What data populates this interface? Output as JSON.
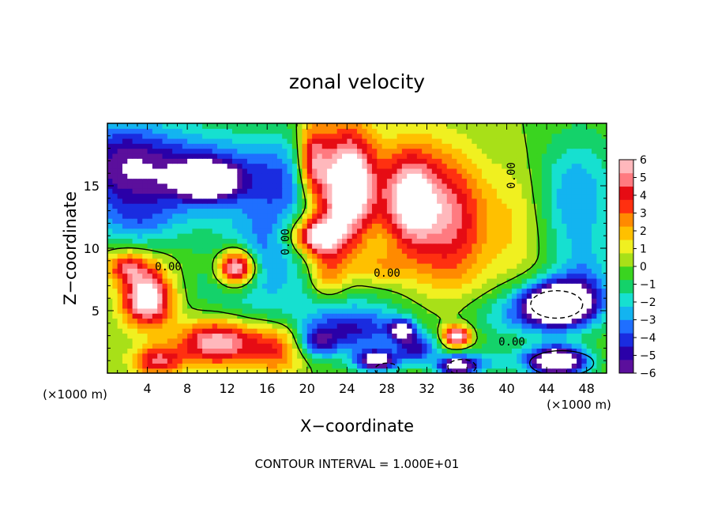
{
  "chart_data": {
    "type": "heatmap",
    "title": "zonal velocity",
    "xlabel": "X−coordinate",
    "ylabel": "Z−coordinate",
    "x_units_left": "(×1000 m)",
    "x_units_right": "(×1000 m)",
    "footer": "CONTOUR INTERVAL = 1.000E+01",
    "xlim": [
      0,
      50
    ],
    "ylim": [
      0,
      20
    ],
    "x_ticks": [
      "4",
      "8",
      "12",
      "16",
      "20",
      "24",
      "28",
      "32",
      "36",
      "40",
      "44",
      "48"
    ],
    "y_ticks": [
      "5",
      "10",
      "15"
    ],
    "colorbar": {
      "min": -6,
      "max": 6,
      "labels": [
        "6",
        "5",
        "4",
        "3",
        "2",
        "1",
        "0",
        "−1",
        "−2",
        "−3",
        "−4",
        "−5",
        "−6"
      ],
      "colors": [
        "#5b0f9c",
        "#2a00a8",
        "#1a2ce0",
        "#1f6fff",
        "#13b4f0",
        "#16e0d0",
        "#14d26a",
        "#3ad420",
        "#a8e018",
        "#f0f020",
        "#ffc000",
        "#ff8a00",
        "#ff3010",
        "#e60c14",
        "#ff7a80",
        "#ffb8bc"
      ]
    },
    "contour_labels": [
      "0.00",
      "0.00",
      "0.00",
      "0.00",
      "0.00"
    ],
    "blobs": [
      {
        "x": 17,
        "y": 7,
        "u": -2.0,
        "sx": 9,
        "sy": 5
      },
      {
        "x": 8,
        "y": 16,
        "u": -4.5,
        "sx": 9,
        "sy": 3.5
      },
      {
        "x": 10,
        "y": 15.5,
        "u": -6.5,
        "sx": 3,
        "sy": 1.4
      },
      {
        "x": 18,
        "y": 15,
        "u": -2.5,
        "sx": 4,
        "sy": 4
      },
      {
        "x": 1,
        "y": 17,
        "u": -3.5,
        "sx": 5,
        "sy": 4
      },
      {
        "x": 3,
        "y": 12,
        "u": -2.0,
        "sx": 4,
        "sy": 2
      },
      {
        "x": 5,
        "y": 9,
        "u": 0.5,
        "sx": 4,
        "sy": 1.5
      },
      {
        "x": 15,
        "y": 10,
        "u": -1.5,
        "sx": 3,
        "sy": 3
      },
      {
        "x": 13,
        "y": 8.5,
        "u": 8.0,
        "sx": 1.8,
        "sy": 1.4
      },
      {
        "x": 4,
        "y": 6,
        "u": 7.5,
        "sx": 2.5,
        "sy": 2.2
      },
      {
        "x": 2,
        "y": 8.5,
        "u": 4.0,
        "sx": 2,
        "sy": 1.2
      },
      {
        "x": 11,
        "y": 2.5,
        "u": 6.5,
        "sx": 4,
        "sy": 1.8
      },
      {
        "x": 5,
        "y": 1,
        "u": 4.5,
        "sx": 2.5,
        "sy": 1.2
      },
      {
        "x": 17,
        "y": 2,
        "u": 4.0,
        "sx": 3,
        "sy": 2
      },
      {
        "x": 24,
        "y": 15,
        "u": 9.0,
        "sx": 3,
        "sy": 4.5
      },
      {
        "x": 21,
        "y": 11,
        "u": 7.0,
        "sx": 2.5,
        "sy": 1.5
      },
      {
        "x": 20.5,
        "y": 17,
        "u": 5.0,
        "sx": 1.5,
        "sy": 3
      },
      {
        "x": 30,
        "y": 14,
        "u": 6.0,
        "sx": 2.5,
        "sy": 4
      },
      {
        "x": 33,
        "y": 13,
        "u": 4.0,
        "sx": 3,
        "sy": 5
      },
      {
        "x": 36,
        "y": 12,
        "u": 2.5,
        "sx": 3,
        "sy": 5
      },
      {
        "x": 41,
        "y": 12,
        "u": 1.5,
        "sx": 3,
        "sy": 5
      },
      {
        "x": 22,
        "y": 8,
        "u": 3.5,
        "sx": 2,
        "sy": 2
      },
      {
        "x": 27,
        "y": 8.5,
        "u": 2.0,
        "sx": 3,
        "sy": 1.5
      },
      {
        "x": 33,
        "y": 8,
        "u": 0.5,
        "sx": 4,
        "sy": 2
      },
      {
        "x": 25,
        "y": 3.5,
        "u": -4.0,
        "sx": 5,
        "sy": 2
      },
      {
        "x": 29.5,
        "y": 3.5,
        "u": -5.5,
        "sx": 1.2,
        "sy": 0.8
      },
      {
        "x": 31,
        "y": 2,
        "u": -4.5,
        "sx": 2,
        "sy": 1.2
      },
      {
        "x": 21,
        "y": 2.5,
        "u": -3.5,
        "sx": 2,
        "sy": 1.2
      },
      {
        "x": 35,
        "y": 3,
        "u": 7.0,
        "sx": 1.3,
        "sy": 0.8
      },
      {
        "x": 40,
        "y": 4.5,
        "u": -2.0,
        "sx": 4,
        "sy": 2
      },
      {
        "x": 38,
        "y": 1,
        "u": -2.0,
        "sx": 3,
        "sy": 1
      },
      {
        "x": 45,
        "y": 5.5,
        "u": -10.0,
        "sx": 3.5,
        "sy": 1.8
      },
      {
        "x": 45,
        "y": 1,
        "u": -9.0,
        "sx": 3,
        "sy": 1.2
      },
      {
        "x": 47,
        "y": 14,
        "u": -3.0,
        "sx": 4,
        "sy": 5
      },
      {
        "x": 48,
        "y": 7,
        "u": -2.5,
        "sx": 3,
        "sy": 3
      },
      {
        "x": 27,
        "y": 1,
        "u": -7.0,
        "sx": 2,
        "sy": 0.8
      },
      {
        "x": 35,
        "y": 0.6,
        "u": -7.0,
        "sx": 2,
        "sy": 0.8
      }
    ],
    "dashed_ellipses": [
      {
        "x": 45,
        "y": 5.5,
        "rx": 2.6,
        "ry": 1.1
      },
      {
        "x": 28,
        "y": 0.3,
        "rx": 1.2,
        "ry": 0.5
      },
      {
        "x": 35.5,
        "y": 0.5,
        "rx": 1.4,
        "ry": 0.6
      }
    ],
    "solid_ellipses": [
      {
        "x": 45.5,
        "y": 0.8,
        "rx": 3.2,
        "ry": 1.0
      }
    ]
  }
}
